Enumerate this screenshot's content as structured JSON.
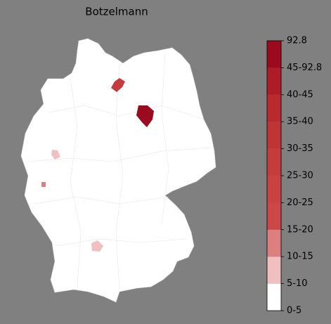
{
  "title": "Botzelmann",
  "colorbar": {
    "labels": [
      "0-5",
      "5-10",
      "10-15",
      "15-20",
      "20-25",
      "25-30",
      "30-35",
      "35-40",
      "40-45",
      "45-92.8",
      "92.8"
    ],
    "colors": [
      "#ffffff",
      "#f0c0c0",
      "#dc7f7f",
      "#cc4848",
      "#c84242",
      "#c43c3c",
      "#bf3434",
      "#b82a2e",
      "#ae1c28",
      "#9b0a1e"
    ]
  }
}
